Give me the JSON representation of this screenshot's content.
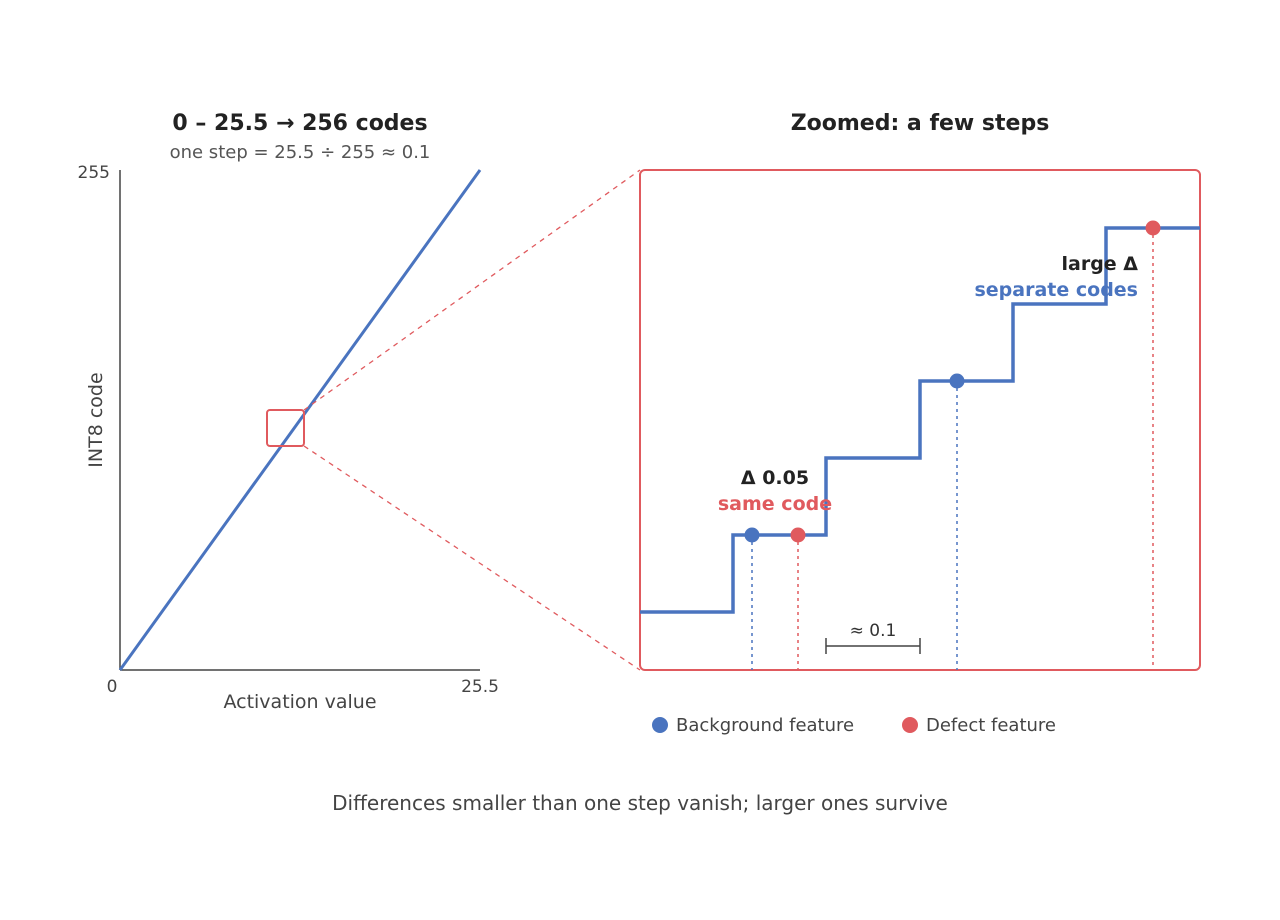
{
  "left_panel": {
    "title": "0 – 25.5 → 256 codes",
    "subtitle": "one step = 25.5 ÷ 255 ≈ 0.1",
    "y_tick_top": "255",
    "x_tick_min": "0",
    "x_tick_max": "25.5",
    "y_label": "INT8 code",
    "x_label": "Activation value"
  },
  "right_panel": {
    "title": "Zoomed: a few steps",
    "small_delta_label": "Δ 0.05",
    "small_delta_result": "same code",
    "large_delta_label": "large Δ",
    "large_delta_result": "separate codes",
    "step_bracket_label": "≈ 0.1"
  },
  "legend": {
    "background": "Background feature",
    "defect": "Defect feature"
  },
  "caption": "Differences smaller than one step vanish; larger ones survive",
  "colors": {
    "blue": "#4a74bf",
    "red": "#e05a5e",
    "axis": "#444444"
  },
  "chart_data": [
    {
      "type": "line",
      "title": "0 – 25.5 → 256 codes",
      "subtitle": "one step = 25.5 ÷ 255 ≈ 0.1",
      "xlabel": "Activation value",
      "ylabel": "INT8 code",
      "xlim": [
        0,
        25.5
      ],
      "ylim": [
        0,
        255
      ],
      "series": [
        {
          "x": [
            0,
            25.5
          ],
          "y": [
            0,
            255
          ]
        }
      ]
    }
  ]
}
